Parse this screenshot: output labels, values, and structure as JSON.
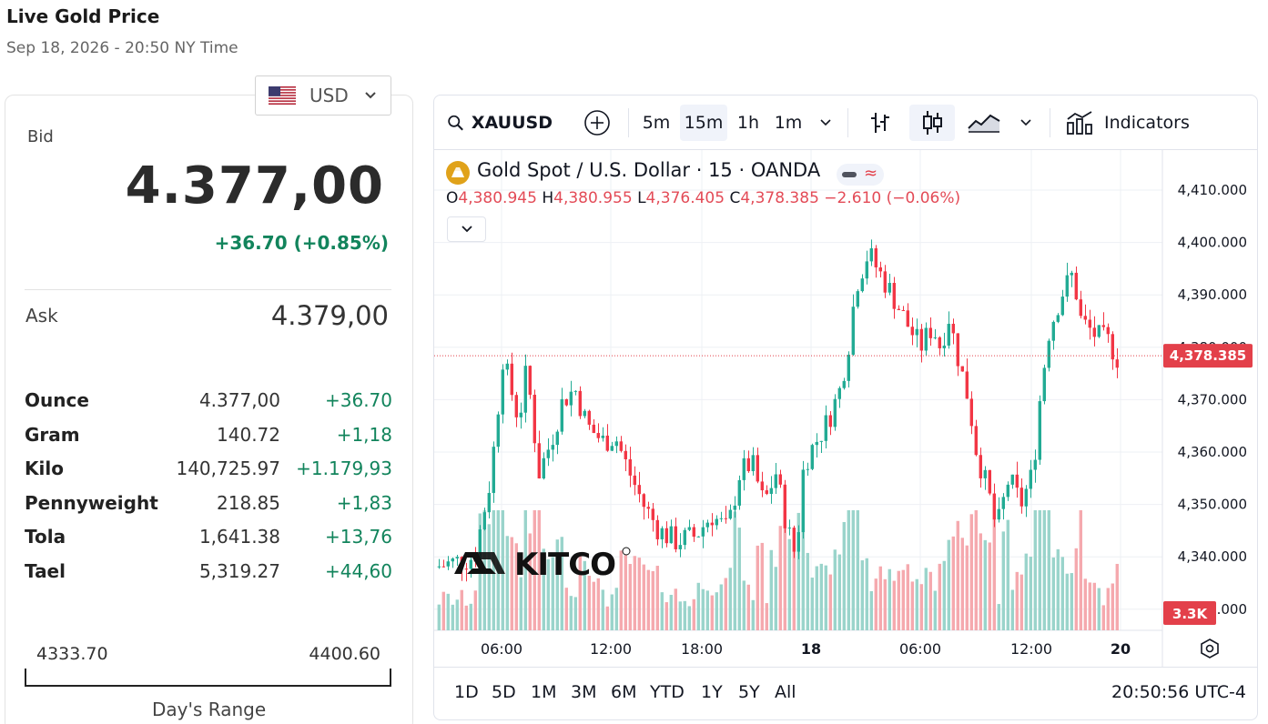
{
  "page": {
    "title": "Live Gold Price",
    "datetime": "Sep 18, 2026 - 20:50 NY Time"
  },
  "currency": {
    "selected": "USD",
    "flag_icon": "us-flag-icon"
  },
  "quote": {
    "bid_label": "Bid",
    "bid": "4.377,00",
    "change": "+36.70 (+0.85%)",
    "ask_label": "Ask",
    "ask": "4.379,00"
  },
  "units": [
    {
      "name": "Ounce",
      "price": "4.377,00",
      "change": "+36.70"
    },
    {
      "name": "Gram",
      "price": "140.72",
      "change": "+1,18"
    },
    {
      "name": "Kilo",
      "price": "140,725.97",
      "change": "+1.179,93"
    },
    {
      "name": "Pennyweight",
      "price": "218.85",
      "change": "+1,83"
    },
    {
      "name": "Tola",
      "price": "1,641.38",
      "change": "+13,76"
    },
    {
      "name": "Tael",
      "price": "5,319.27",
      "change": "+44,60"
    }
  ],
  "day_range": {
    "low": "4333.70",
    "high": "4400.60",
    "label": "Day's Range"
  },
  "chart": {
    "symbol": "XAUUSD",
    "intervals": [
      "5m",
      "15m",
      "1h",
      "1m"
    ],
    "active_interval": "15m",
    "indicators_label": "Indicators",
    "legend_title": "Gold Spot / U.S. Dollar · 15 · OANDA",
    "ohlc": {
      "o_label": "O",
      "o": "4,380.945",
      "h_label": "H",
      "h": "4,380.955",
      "l_label": "L",
      "l": "4,376.405",
      "c_label": "C",
      "c": "4,378.385",
      "chg": "−2.610 (−0.06%)"
    },
    "last_price_label": "4,378.385",
    "volume_label": "3.3K",
    "watermark": "KITCO",
    "ranges": [
      "1D",
      "5D",
      "1M",
      "3M",
      "6M",
      "YTD",
      "1Y",
      "5Y",
      "All"
    ],
    "clock": "20:50:56 UTC-4",
    "colors": {
      "up": "#22ab94",
      "down": "#f23645",
      "vol_up": "#9ad4cb",
      "vol_down": "#f5a9ae",
      "price_tag": "#e3404a"
    }
  },
  "chart_data": {
    "type": "candlestick",
    "title": "Gold Spot / U.S. Dollar · 15 · OANDA",
    "y_ticks": [
      "4,410.000",
      "4,400.000",
      "4,390.000",
      "4,380.000",
      "4,370.000",
      "4,360.000",
      "4,350.000",
      "4,340.000",
      "4,330.000"
    ],
    "y_range": [
      4327,
      4413
    ],
    "x_ticks": [
      "06:00",
      "12:00",
      "18:00",
      "18",
      "06:00",
      "12:00",
      "20"
    ],
    "last_price": 4378.385,
    "close_path": [
      [
        0,
        4338
      ],
      [
        20,
        4340
      ],
      [
        28,
        4355
      ],
      [
        32,
        4370
      ],
      [
        34,
        4378
      ],
      [
        38,
        4372
      ],
      [
        42,
        4366
      ],
      [
        46,
        4376
      ],
      [
        52,
        4356
      ],
      [
        58,
        4362
      ],
      [
        64,
        4370
      ],
      [
        70,
        4372
      ],
      [
        76,
        4365
      ],
      [
        84,
        4362
      ],
      [
        90,
        4363
      ],
      [
        96,
        4357
      ],
      [
        104,
        4350
      ],
      [
        112,
        4345
      ],
      [
        120,
        4343
      ],
      [
        130,
        4344
      ],
      [
        138,
        4348
      ],
      [
        146,
        4345
      ],
      [
        152,
        4356
      ],
      [
        158,
        4358
      ],
      [
        164,
        4350
      ],
      [
        170,
        4356
      ],
      [
        176,
        4345
      ],
      [
        180,
        4340
      ],
      [
        184,
        4358
      ],
      [
        190,
        4362
      ],
      [
        196,
        4366
      ],
      [
        202,
        4372
      ],
      [
        206,
        4380
      ],
      [
        210,
        4392
      ],
      [
        216,
        4398
      ],
      [
        222,
        4394
      ],
      [
        228,
        4390
      ],
      [
        232,
        4387
      ],
      [
        236,
        4384
      ],
      [
        242,
        4380
      ],
      [
        248,
        4384
      ],
      [
        252,
        4380
      ],
      [
        256,
        4386
      ],
      [
        262,
        4376
      ],
      [
        266,
        4370
      ],
      [
        270,
        4360
      ],
      [
        276,
        4352
      ],
      [
        280,
        4345
      ],
      [
        286,
        4355
      ],
      [
        292,
        4350
      ],
      [
        298,
        4356
      ],
      [
        302,
        4372
      ],
      [
        306,
        4383
      ],
      [
        312,
        4390
      ],
      [
        318,
        4394
      ],
      [
        322,
        4385
      ],
      [
        330,
        4382
      ],
      [
        336,
        4381
      ],
      [
        340,
        4378
      ]
    ]
  }
}
